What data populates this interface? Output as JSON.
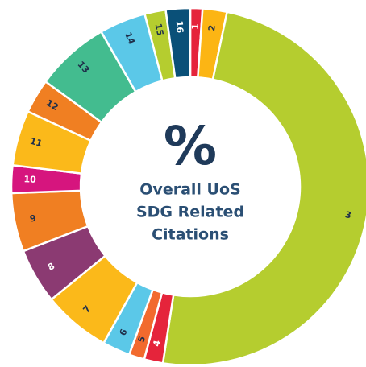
{
  "chart_data": {
    "type": "donut",
    "categories": [
      "1",
      "2",
      "3",
      "4",
      "5",
      "6",
      "7",
      "8",
      "9",
      "10",
      "11",
      "12",
      "13",
      "14",
      "15",
      "16"
    ],
    "values": [
      1.1,
      2.2,
      49.2,
      1.7,
      1.4,
      2.5,
      6.1,
      5.0,
      5.3,
      2.5,
      5.0,
      3.1,
      6.7,
      4.2,
      1.9,
      2.2
    ],
    "colors": [
      "#e5243b",
      "#fcb514",
      "#b5cd2f",
      "#e5243b",
      "#f26a2e",
      "#5bc8e8",
      "#fbb91a",
      "#8b3a72",
      "#f07f22",
      "#d6157e",
      "#fbb91a",
      "#f07f22",
      "#43bc8f",
      "#5bc8e8",
      "#b5cd2f",
      "#0a5078"
    ],
    "center_label": "%",
    "center_text": [
      "Overall UoS",
      "SDG Related",
      "Citations"
    ]
  }
}
